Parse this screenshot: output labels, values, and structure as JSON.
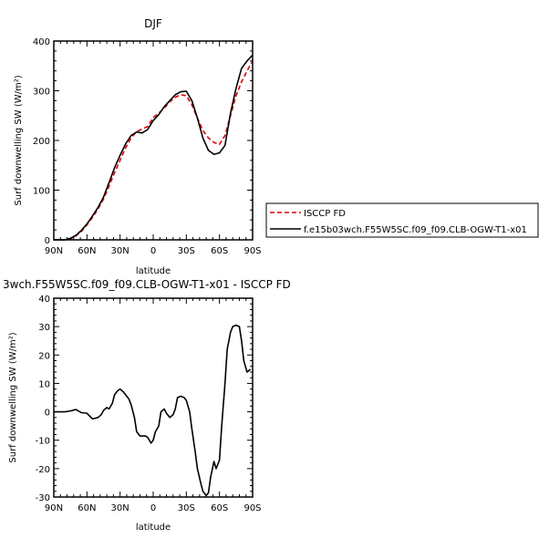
{
  "chart_data": [
    {
      "type": "line",
      "title": "DJF",
      "xlabel": "latitude",
      "ylabel": "Surf downwelling SW (W/m²)",
      "xlim": [
        -90,
        90
      ],
      "ylim": [
        0,
        400
      ],
      "xticks": [
        {
          "value": -90,
          "label": "90N"
        },
        {
          "value": -60,
          "label": "60N"
        },
        {
          "value": -30,
          "label": "30N"
        },
        {
          "value": 0,
          "label": "0"
        },
        {
          "value": 30,
          "label": "30S"
        },
        {
          "value": 60,
          "label": "60S"
        },
        {
          "value": 90,
          "label": "90S"
        }
      ],
      "yticks": [
        0,
        100,
        200,
        300,
        400
      ],
      "legend": "right",
      "series": [
        {
          "name": "ISCCP FD",
          "color": "#dd0000",
          "dash": "dashed",
          "x": [
            -90,
            -85,
            -80,
            -75,
            -70,
            -65,
            -60,
            -55,
            -50,
            -45,
            -40,
            -35,
            -30,
            -25,
            -20,
            -15,
            -10,
            -5,
            0,
            5,
            10,
            15,
            20,
            25,
            30,
            35,
            40,
            45,
            50,
            55,
            60,
            65,
            70,
            75,
            80,
            85,
            90
          ],
          "values": [
            0,
            0,
            0,
            2,
            8,
            17,
            30,
            45,
            62,
            82,
            108,
            135,
            160,
            185,
            205,
            218,
            223,
            228,
            246,
            255,
            265,
            278,
            287,
            292,
            290,
            272,
            245,
            220,
            205,
            196,
            192,
            210,
            250,
            290,
            318,
            340,
            360
          ]
        },
        {
          "name": "f.e15b03wch.F55W5SC.f09_f09.CLB-OGW-T1-x01",
          "color": "#000000",
          "dash": "solid",
          "x": [
            -90,
            -85,
            -80,
            -75,
            -70,
            -65,
            -60,
            -55,
            -50,
            -45,
            -40,
            -35,
            -30,
            -25,
            -20,
            -15,
            -10,
            -5,
            0,
            5,
            10,
            15,
            20,
            25,
            30,
            35,
            40,
            45,
            50,
            55,
            60,
            65,
            70,
            75,
            80,
            85,
            90
          ],
          "values": [
            0,
            0,
            0,
            3,
            9,
            19,
            32,
            48,
            65,
            86,
            115,
            145,
            170,
            193,
            210,
            217,
            215,
            222,
            240,
            252,
            268,
            280,
            292,
            298,
            299,
            280,
            245,
            205,
            180,
            172,
            175,
            190,
            255,
            305,
            345,
            360,
            372
          ]
        }
      ]
    },
    {
      "type": "line",
      "title": "3wch.F55W5SC.f09_f09.CLB-OGW-T1-x01 - ISCCP FD",
      "xlabel": "latitude",
      "ylabel": "Surf downwelling SW (W/m²)",
      "xlim": [
        -90,
        90
      ],
      "ylim": [
        -30,
        40
      ],
      "xticks": [
        {
          "value": -90,
          "label": "90N"
        },
        {
          "value": -60,
          "label": "60N"
        },
        {
          "value": -30,
          "label": "30N"
        },
        {
          "value": 0,
          "label": "0"
        },
        {
          "value": 30,
          "label": "30S"
        },
        {
          "value": 60,
          "label": "60S"
        },
        {
          "value": 90,
          "label": "90S"
        }
      ],
      "yticks": [
        -30,
        -20,
        -10,
        0,
        10,
        20,
        30,
        40
      ],
      "series": [
        {
          "color": "#000000",
          "dash": "solid",
          "x": [
            -90,
            -85,
            -80,
            -75,
            -70,
            -65,
            -60,
            -55,
            -50,
            -47,
            -45,
            -42,
            -40,
            -37,
            -35,
            -32,
            -30,
            -27,
            -25,
            -22,
            -20,
            -17,
            -15,
            -12,
            -10,
            -7,
            -5,
            -2,
            0,
            2,
            5,
            7,
            10,
            12,
            15,
            18,
            20,
            22,
            25,
            28,
            30,
            33,
            35,
            38,
            40,
            43,
            45,
            48,
            50,
            52,
            55,
            57,
            60,
            62,
            65,
            67,
            70,
            72,
            75,
            78,
            80,
            82,
            85,
            88
          ],
          "values": [
            0,
            0,
            0,
            0.3,
            0.8,
            -0.3,
            -0.5,
            -2.5,
            -2.0,
            -1.0,
            0.5,
            1.5,
            1.0,
            3.0,
            6.0,
            7.5,
            8.0,
            7.0,
            6.0,
            4.5,
            2.5,
            -2.0,
            -7.0,
            -8.5,
            -8.5,
            -8.5,
            -9.0,
            -11.0,
            -10.0,
            -7.0,
            -5.0,
            0,
            1.0,
            -0.5,
            -2.0,
            -1.0,
            1.0,
            5.0,
            5.5,
            5.0,
            4.0,
            0,
            -6.0,
            -14.0,
            -20.0,
            -25.0,
            -28.0,
            -29.5,
            -28.5,
            -23.0,
            -17.5,
            -20.0,
            -17.0,
            -5.0,
            10.0,
            22.0,
            28.0,
            30.0,
            30.5,
            30.0,
            25.0,
            18.0,
            14.0,
            15.0
          ]
        }
      ]
    }
  ]
}
